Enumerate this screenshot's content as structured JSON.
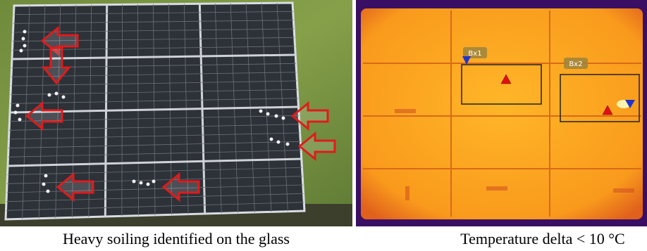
{
  "left_panel": {
    "caption": "Heavy soiling identified on the glass"
  },
  "right_panel": {
    "caption": "Temperature delta < 10 °C",
    "boxes": [
      "Bx1",
      "Bx2"
    ]
  }
}
